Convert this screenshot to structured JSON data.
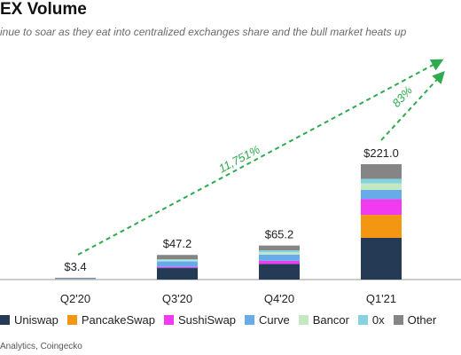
{
  "header": {
    "title": "EX Volume",
    "subtitle": "inue to soar as they eat into centralized exchanges share and the bull market heats up"
  },
  "source_text": "Analytics, Coingecko",
  "colors": {
    "Uniswap": "#243a55",
    "PancakeSwap": "#f39612",
    "SushiSwap": "#f03bf0",
    "Curve": "#67abe8",
    "Bancor": "#c4e8c1",
    "0x": "#86d3df",
    "Other": "#858585",
    "growth": "#2eaa4f"
  },
  "chart_data": {
    "type": "bar",
    "stacked": true,
    "categories": [
      "Q2'20",
      "Q3'20",
      "Q4'20",
      "Q1'21"
    ],
    "totals": [
      "$3.4",
      "$47.2",
      "$65.2",
      "$221.0"
    ],
    "total_values": [
      3.4,
      47.2,
      65.2,
      221.0
    ],
    "ylim": [
      0,
      240
    ],
    "series": [
      {
        "name": "Uniswap",
        "values": [
          0.4,
          22,
          30,
          80
        ]
      },
      {
        "name": "PancakeSwap",
        "values": [
          0,
          0,
          0,
          44
        ]
      },
      {
        "name": "SushiSwap",
        "values": [
          0,
          2,
          6,
          30
        ]
      },
      {
        "name": "Curve",
        "values": [
          0.7,
          11,
          12,
          18
        ]
      },
      {
        "name": "Bancor",
        "values": [
          0.3,
          2,
          4,
          12
        ]
      },
      {
        "name": "0x",
        "values": [
          0.4,
          2,
          4,
          9
        ]
      },
      {
        "name": "Other",
        "values": [
          1.6,
          8.2,
          9.2,
          28
        ]
      }
    ],
    "annotations": [
      {
        "text": "11,751%",
        "from": "Q2'20",
        "to": "Q1'21"
      },
      {
        "text": "83%",
        "from": "Q1'21",
        "to": "Q1'21"
      }
    ]
  }
}
